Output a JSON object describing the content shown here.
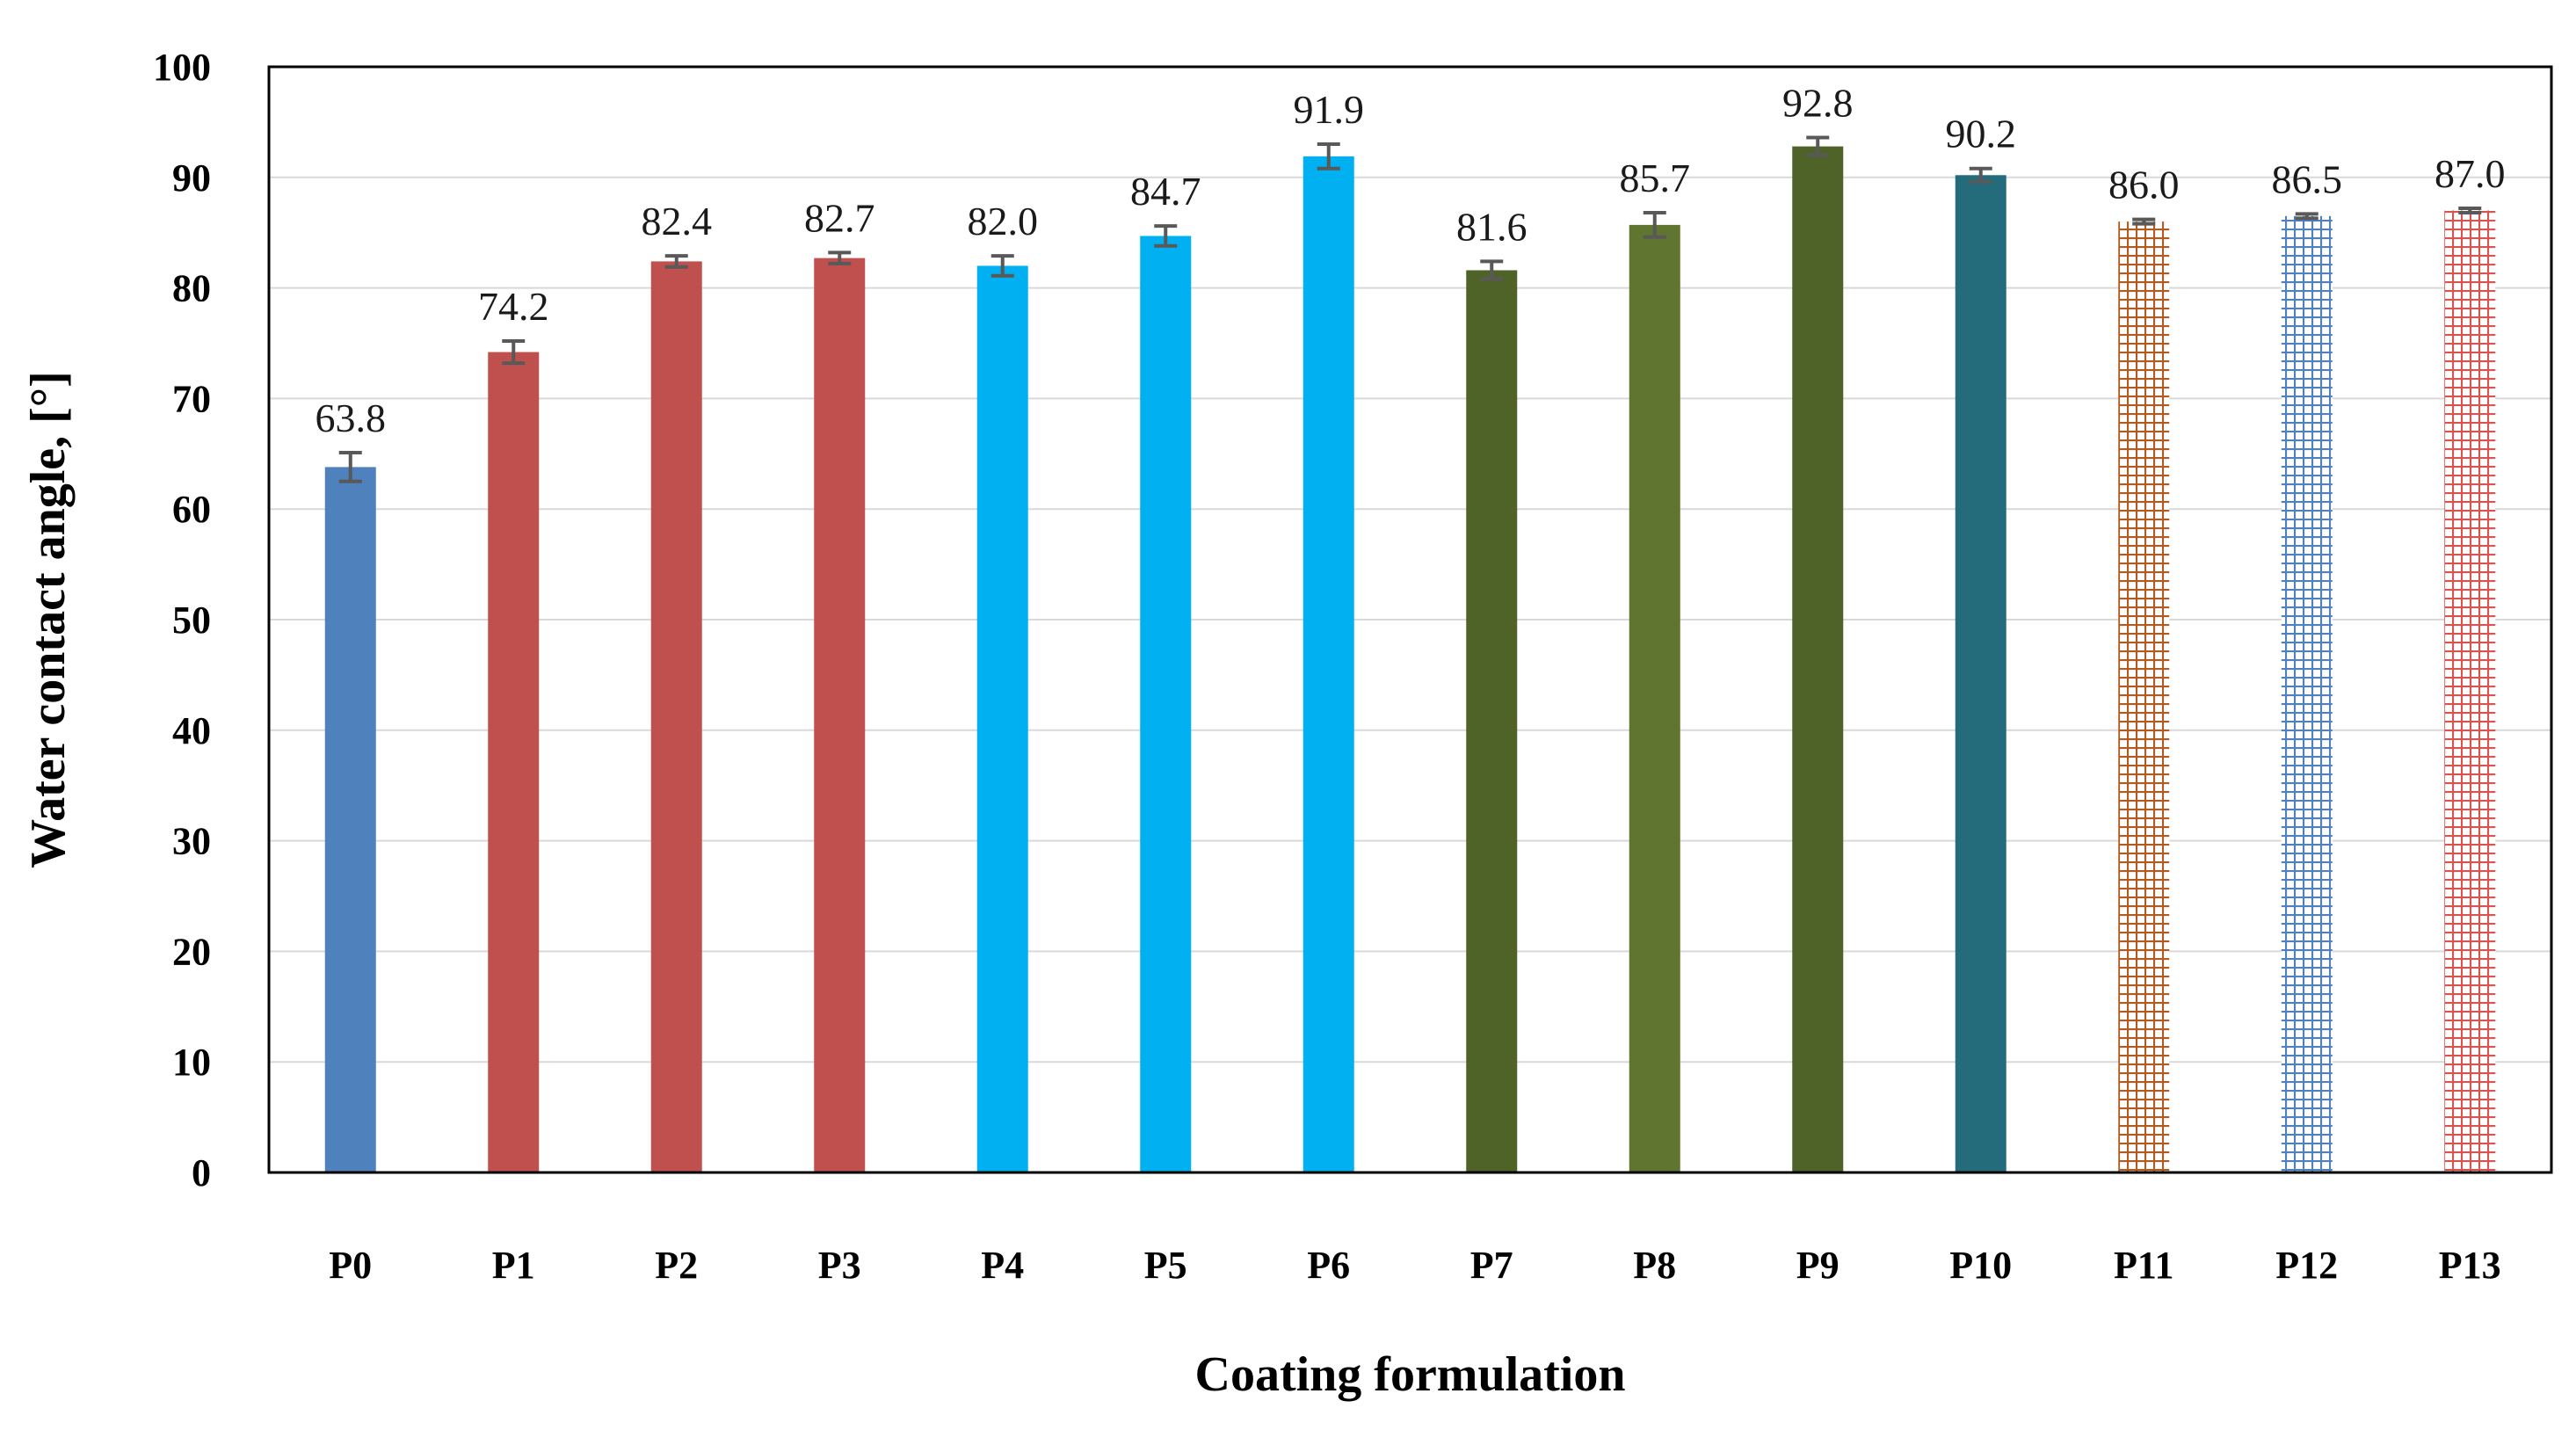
{
  "chart_data": {
    "type": "bar",
    "title": "",
    "xlabel": "Coating formulation",
    "ylabel": "Water contact angle, [°]",
    "ylim": [
      0,
      100
    ],
    "yticks": [
      0,
      10,
      20,
      30,
      40,
      50,
      60,
      70,
      80,
      90,
      100
    ],
    "grid": true,
    "categories": [
      "P0",
      "P1",
      "P2",
      "P3",
      "P4",
      "P5",
      "P6",
      "P7",
      "P8",
      "P9",
      "P10",
      "P11",
      "P12",
      "P13"
    ],
    "values": [
      63.8,
      74.2,
      82.4,
      82.7,
      82.0,
      84.7,
      91.9,
      81.6,
      85.7,
      92.8,
      90.2,
      86.0,
      86.5,
      87.0
    ],
    "value_labels": [
      "63.8",
      "74.2",
      "82.4",
      "82.7",
      "82.0",
      "84.7",
      "91.9",
      "81.6",
      "85.7",
      "92.8",
      "90.2",
      "86.0",
      "86.5",
      "87.0"
    ],
    "errors": [
      1.3,
      1.0,
      0.5,
      0.5,
      0.9,
      0.9,
      1.1,
      0.8,
      1.1,
      0.8,
      0.6,
      0.2,
      0.2,
      0.2
    ],
    "colors": [
      "#4f81bd",
      "#c0504d",
      "#c0504d",
      "#c0504d",
      "#00b0f0",
      "#00b0f0",
      "#00b0f0",
      "#4f6228",
      "#5f7530",
      "#4f6228",
      "#246c7c",
      "#c0504d",
      "#4f81bd",
      "#c0504d"
    ],
    "hatched": [
      false,
      false,
      false,
      false,
      false,
      false,
      false,
      false,
      false,
      false,
      false,
      true,
      true,
      true
    ],
    "hatch_colors": [
      "",
      "",
      "",
      "",
      "",
      "",
      "",
      "",
      "",
      "",
      "",
      "#b35a1f",
      "#4f81bd",
      "#d9534f"
    ],
    "error_bar_color": "#595959",
    "grid_color": "#d9d9d9"
  }
}
